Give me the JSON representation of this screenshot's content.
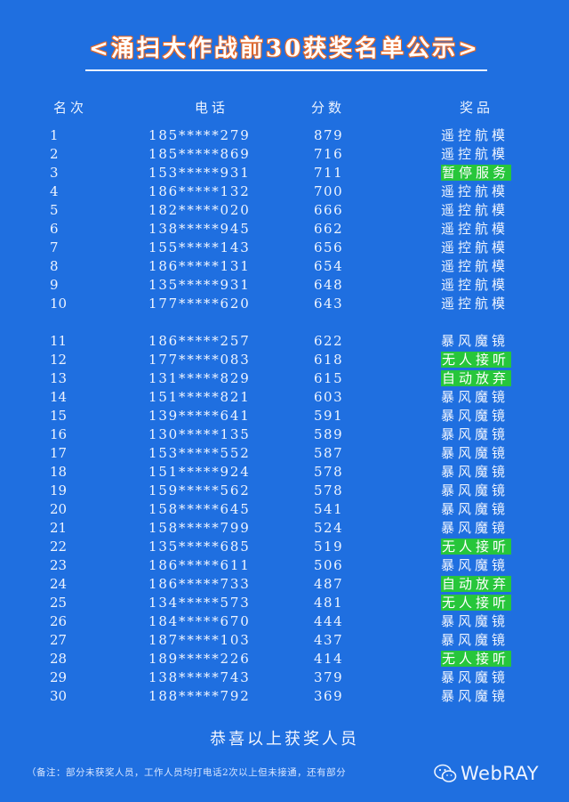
{
  "title": "<涌扫大作战前30获奖名单公示>",
  "headers": {
    "rank": "名次",
    "phone": "电话",
    "score": "分数",
    "prize": "奖品"
  },
  "rows": [
    {
      "rank": "1",
      "phone": "185*****279",
      "score": "879",
      "prize": "遥控航模",
      "highlight": false
    },
    {
      "rank": "2",
      "phone": "185*****869",
      "score": "716",
      "prize": "遥控航模",
      "highlight": false
    },
    {
      "rank": "3",
      "phone": "153*****931",
      "score": "711",
      "prize": "暂停服务",
      "highlight": true
    },
    {
      "rank": "4",
      "phone": "186*****132",
      "score": "700",
      "prize": "遥控航模",
      "highlight": false
    },
    {
      "rank": "5",
      "phone": "182*****020",
      "score": "666",
      "prize": "遥控航模",
      "highlight": false
    },
    {
      "rank": "6",
      "phone": "138*****945",
      "score": "662",
      "prize": "遥控航模",
      "highlight": false
    },
    {
      "rank": "7",
      "phone": "155*****143",
      "score": "656",
      "prize": "遥控航模",
      "highlight": false
    },
    {
      "rank": "8",
      "phone": "186*****131",
      "score": "654",
      "prize": "遥控航模",
      "highlight": false
    },
    {
      "rank": "9",
      "phone": "135*****931",
      "score": "648",
      "prize": "遥控航模",
      "highlight": false
    },
    {
      "rank": "10",
      "phone": "177*****620",
      "score": "643",
      "prize": "遥控航模",
      "highlight": false
    },
    {
      "rank": "11",
      "phone": "186*****257",
      "score": "622",
      "prize": "暴风魔镜",
      "highlight": false
    },
    {
      "rank": "12",
      "phone": "177*****083",
      "score": "618",
      "prize": "无人接听",
      "highlight": true
    },
    {
      "rank": "13",
      "phone": "131*****829",
      "score": "615",
      "prize": "自动放弃",
      "highlight": true
    },
    {
      "rank": "14",
      "phone": "151*****821",
      "score": "603",
      "prize": "暴风魔镜",
      "highlight": false
    },
    {
      "rank": "15",
      "phone": "139*****641",
      "score": "591",
      "prize": "暴风魔镜",
      "highlight": false
    },
    {
      "rank": "16",
      "phone": "130*****135",
      "score": "589",
      "prize": "暴风魔镜",
      "highlight": false
    },
    {
      "rank": "17",
      "phone": "153*****552",
      "score": "587",
      "prize": "暴风魔镜",
      "highlight": false
    },
    {
      "rank": "18",
      "phone": "151*****924",
      "score": "578",
      "prize": "暴风魔镜",
      "highlight": false
    },
    {
      "rank": "19",
      "phone": "159*****562",
      "score": "578",
      "prize": "暴风魔镜",
      "highlight": false
    },
    {
      "rank": "20",
      "phone": "158*****645",
      "score": "541",
      "prize": "暴风魔镜",
      "highlight": false
    },
    {
      "rank": "21",
      "phone": "158*****799",
      "score": "524",
      "prize": "暴风魔镜",
      "highlight": false
    },
    {
      "rank": "22",
      "phone": "135*****685",
      "score": "519",
      "prize": "无人接听",
      "highlight": true
    },
    {
      "rank": "23",
      "phone": "186*****611",
      "score": "506",
      "prize": "暴风魔镜",
      "highlight": false
    },
    {
      "rank": "24",
      "phone": "186*****733",
      "score": "487",
      "prize": "自动放弃",
      "highlight": true
    },
    {
      "rank": "25",
      "phone": "134*****573",
      "score": "481",
      "prize": "无人接听",
      "highlight": true
    },
    {
      "rank": "26",
      "phone": "184*****670",
      "score": "444",
      "prize": "暴风魔镜",
      "highlight": false
    },
    {
      "rank": "27",
      "phone": "187*****103",
      "score": "437",
      "prize": "暴风魔镜",
      "highlight": false
    },
    {
      "rank": "28",
      "phone": "189*****226",
      "score": "414",
      "prize": "无人接听",
      "highlight": true
    },
    {
      "rank": "29",
      "phone": "138*****743",
      "score": "379",
      "prize": "暴风魔镜",
      "highlight": false
    },
    {
      "rank": "30",
      "phone": "188*****792",
      "score": "369",
      "prize": "暴风魔镜",
      "highlight": false
    }
  ],
  "footer": "恭喜以上获奖人员",
  "note": "（备注：部分未获奖人员，工作人员均打电话2次以上但未接通，还有部分",
  "watermark": {
    "icon": "wechat-icon",
    "text": "WebRAY"
  },
  "colors": {
    "background": "#1f6fe0",
    "highlight": "#27c63b",
    "title_outline": "#e2692b"
  }
}
